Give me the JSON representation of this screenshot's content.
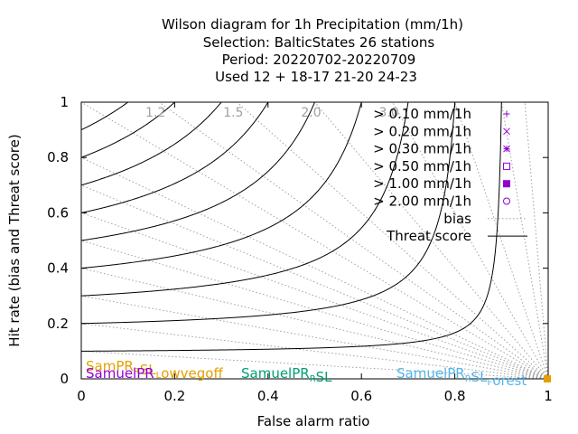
{
  "chart_data": {
    "type": "scatter",
    "title_lines": [
      "Wilson diagram  for 1h Precipitation (mm/1h)",
      "Selection: BalticStates     26 stations",
      "Period: 20220702-20220709",
      "Used  12 + 18-17 21-20 24-23"
    ],
    "xlabel": "False alarm ratio",
    "ylabel": "Hit rate (bias and Threat score)",
    "xlim": [
      0,
      1
    ],
    "ylim": [
      0,
      1
    ],
    "x_ticks": [
      "0",
      "0.2",
      "0.4",
      "0.6",
      "0.8",
      "1"
    ],
    "y_ticks": [
      "0",
      "0.2",
      "0.4",
      "0.6",
      "0.8",
      "1"
    ],
    "bias_values": [
      0.1,
      0.2,
      0.3,
      0.4,
      0.5,
      0.6,
      0.7,
      0.8,
      1.0,
      1.2,
      1.5,
      2.0,
      3.0,
      5.0,
      10.0,
      20.0
    ],
    "bias_labels": [
      {
        "bias": 1.2,
        "text": "1.2"
      },
      {
        "bias": 1.5,
        "text": "1.5"
      },
      {
        "bias": 2.0,
        "text": "2.0"
      },
      {
        "bias": 3.0,
        "text": "3.0"
      }
    ],
    "threat_values": [
      0.1,
      0.2,
      0.3,
      0.4,
      0.5,
      0.6,
      0.7,
      0.8,
      0.9
    ],
    "legend": [
      {
        "label": "> 0.10 mm/1h",
        "marker": "plus",
        "color": "#9400d3"
      },
      {
        "label": "> 0.20 mm/1h",
        "marker": "cross",
        "color": "#9400d3"
      },
      {
        "label": "> 0.30 mm/1h",
        "marker": "star",
        "color": "#9400d3"
      },
      {
        "label": "> 0.50 mm/1h",
        "marker": "square-open",
        "color": "#9400d3"
      },
      {
        "label": "> 1.00 mm/1h",
        "marker": "square-filled",
        "color": "#9400d3"
      },
      {
        "label": "> 2.00 mm/1h",
        "marker": "circle-open",
        "color": "#9400d3"
      },
      {
        "label": "bias",
        "marker": "dotted-line",
        "color": "#a0a0a0"
      },
      {
        "label": "Threat score",
        "marker": "solid-line",
        "color": "#000000"
      }
    ],
    "models": [
      {
        "base": "SamPR",
        "sub": "R",
        "rest": "SL",
        "sub2": "L",
        "rest2": "owvegoff",
        "color": "#e69f00"
      },
      {
        "base": "SamuelPR",
        "sub": "",
        "rest": "",
        "sub2": "",
        "rest2": "",
        "color": "#9400d3"
      },
      {
        "base": "SamuelPR",
        "sub": "R",
        "rest": "SL",
        "sub2": "",
        "rest2": "",
        "color": "#009e73"
      },
      {
        "base": "SamuelPR",
        "sub": "R",
        "rest": "SL",
        "sub2": "F",
        "rest2": "orest",
        "color": "#56b4e9"
      }
    ],
    "points": [
      {
        "x": 1.0,
        "y": 0.0,
        "color": "#e69f00",
        "marker": "square-filled"
      }
    ],
    "grid": false,
    "legend_position": "top-right"
  }
}
